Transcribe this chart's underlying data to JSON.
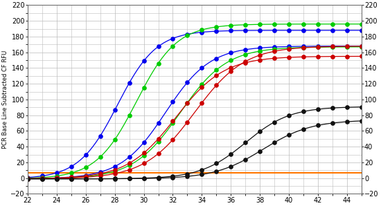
{
  "x_min": 22,
  "x_max": 45,
  "y_min": -20,
  "y_max": 220,
  "x_ticks": [
    22,
    24,
    26,
    28,
    30,
    32,
    34,
    36,
    38,
    40,
    42,
    44
  ],
  "y_ticks": [
    -20,
    0,
    20,
    40,
    60,
    80,
    100,
    120,
    140,
    160,
    180,
    200,
    220
  ],
  "ylabel": "PCR Base Line Subtracted CF RFU",
  "background_color": "#ffffff",
  "grid_color": "#bbbbbb",
  "orange_line_y": 7,
  "series": [
    {
      "color": "#0000ee",
      "midpoint": 28.2,
      "max_val": 188,
      "steepness": 0.75,
      "min_val": -1
    },
    {
      "color": "#00cc00",
      "midpoint": 29.5,
      "max_val": 196,
      "steepness": 0.72,
      "min_val": -1
    },
    {
      "color": "#0000ee",
      "midpoint": 31.5,
      "max_val": 168,
      "steepness": 0.65,
      "min_val": -1
    },
    {
      "color": "#00cc00",
      "midpoint": 32.5,
      "max_val": 167,
      "steepness": 0.62,
      "min_val": -1
    },
    {
      "color": "#cc0000",
      "midpoint": 32.2,
      "max_val": 155,
      "steepness": 0.6,
      "min_val": -1
    },
    {
      "color": "#cc0000",
      "midpoint": 33.5,
      "max_val": 168,
      "steepness": 0.58,
      "min_val": -1
    },
    {
      "color": "#111111",
      "midpoint": 37.0,
      "max_val": 91,
      "steepness": 0.65,
      "min_val": -1
    },
    {
      "color": "#111111",
      "midpoint": 38.2,
      "max_val": 74,
      "steepness": 0.6,
      "min_val": -1
    }
  ]
}
